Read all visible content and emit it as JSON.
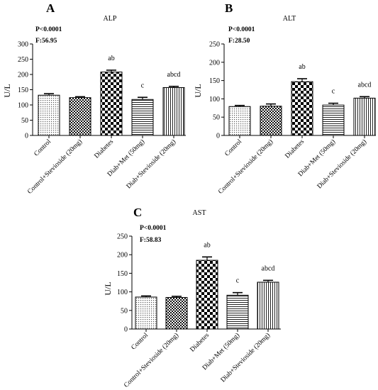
{
  "figure": {
    "colors": {
      "bar_fill": "#ffffff",
      "stroke": "#000000",
      "background": "#ffffff"
    }
  },
  "chart_data": [
    {
      "type": "bar",
      "panel_letter": "A",
      "title": "ALP",
      "stat_p": "P<0.0001",
      "stat_f": "F:56.95",
      "ylabel": "U/L",
      "ylim": [
        0,
        300
      ],
      "yticks": [
        "0",
        "50",
        "100",
        "150",
        "200",
        "250",
        "300"
      ],
      "categories": [
        "Control",
        "Control+Stevioside (20mg)",
        "Diabetes",
        "Diab+Met (50mg)",
        "Diab+Stevioside (20mg)"
      ],
      "values": [
        132,
        124,
        208,
        118,
        157
      ],
      "errors": [
        5,
        3,
        6,
        7,
        4
      ],
      "annotations": [
        "",
        "",
        "ab",
        "c",
        "abcd"
      ],
      "patterns": [
        "dots",
        "checker-small",
        "checker-large",
        "hlines",
        "vlines"
      ]
    },
    {
      "type": "bar",
      "panel_letter": "B",
      "title": "ALT",
      "stat_p": "P<0.0001",
      "stat_f": "F:28.50",
      "ylabel": "U/L",
      "ylim": [
        0,
        250
      ],
      "yticks": [
        "0",
        "50",
        "100",
        "150",
        "200",
        "250"
      ],
      "categories": [
        "Control",
        "Control+Stevioside (20mg)",
        "Diabetes",
        "Diab+Met (50mg)",
        "Diab+Stevioside (20mg)"
      ],
      "values": [
        79,
        80,
        147,
        83,
        102
      ],
      "errors": [
        3,
        6,
        8,
        5,
        4
      ],
      "annotations": [
        "",
        "",
        "ab",
        "c",
        "abcd"
      ],
      "patterns": [
        "dots",
        "checker-small",
        "checker-large",
        "hlines",
        "vlines"
      ]
    },
    {
      "type": "bar",
      "panel_letter": "C",
      "title": "AST",
      "stat_p": "P<0.0001",
      "stat_f": "F:58.83",
      "ylabel": "U/L",
      "ylim": [
        0,
        250
      ],
      "yticks": [
        "0",
        "50",
        "100",
        "150",
        "200",
        "250"
      ],
      "categories": [
        "Control",
        "Control+Stevioside (20mg)",
        "Diabetes",
        "Diab+Met (50mg)",
        "Diab+Stevioside (20mg)"
      ],
      "values": [
        86,
        85,
        185,
        91,
        126
      ],
      "errors": [
        3,
        3,
        9,
        7,
        5
      ],
      "annotations": [
        "",
        "",
        "ab",
        "c",
        "abcd"
      ],
      "patterns": [
        "dots",
        "checker-small",
        "checker-large",
        "hlines",
        "vlines"
      ]
    }
  ]
}
